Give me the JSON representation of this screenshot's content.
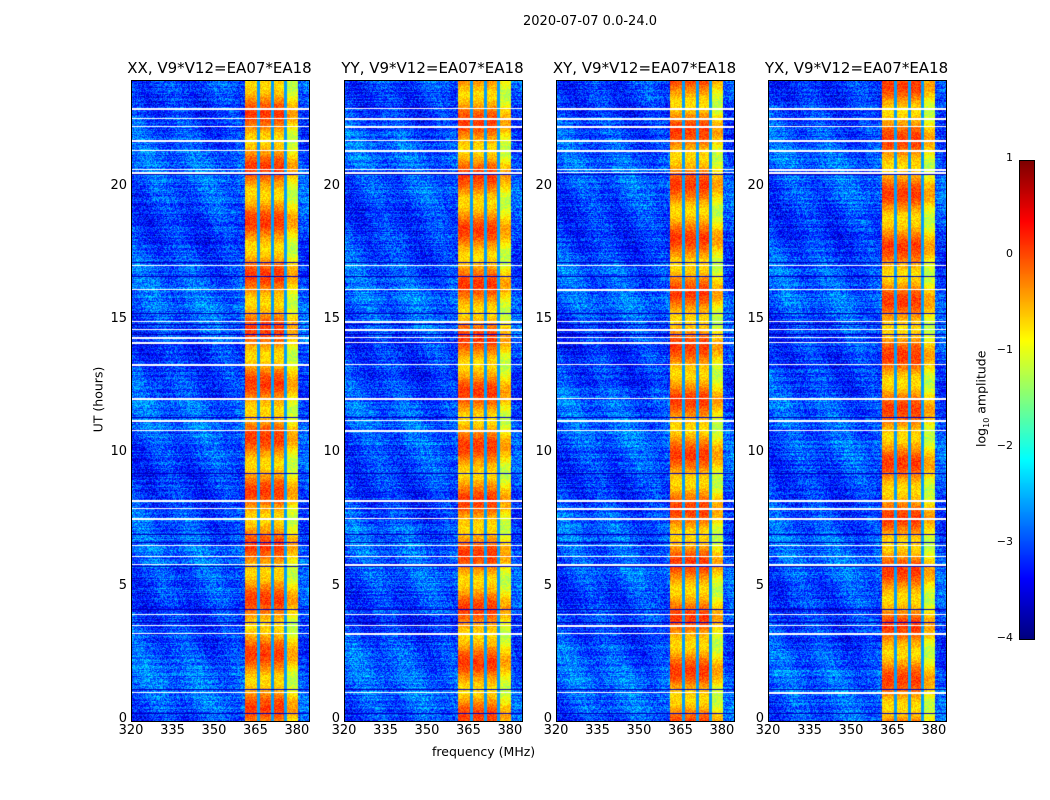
{
  "suptitle": "2020-07-07 0.0-24.0",
  "xlabel": "frequency (MHz)",
  "ylabel": "UT (hours)",
  "colorbar": {
    "label": "log",
    "label_sub": "10",
    "label_rest": " amplitude",
    "ticks": [
      "1",
      "0",
      "−1",
      "−2",
      "−3",
      "−4"
    ],
    "values": [
      1,
      0,
      -1,
      -2,
      -3,
      -4
    ],
    "clim": [
      -4,
      1
    ],
    "colormap": "jet"
  },
  "chart_data": {
    "type": "heatmap",
    "title": "2020-07-07 0.0-24.0",
    "xlabel": "frequency (MHz)",
    "ylabel": "UT (hours)",
    "xlim": [
      320,
      384
    ],
    "ylim": [
      0,
      24
    ],
    "x_ticks": [
      "320",
      "335",
      "350",
      "365",
      "380"
    ],
    "x_tick_values": [
      320,
      335,
      350,
      365,
      380
    ],
    "y_ticks": [
      "0",
      "5",
      "10",
      "15",
      "20"
    ],
    "y_tick_values": [
      0,
      5,
      10,
      15,
      20
    ],
    "color_scale": "log10 amplitude",
    "clim": [
      -4,
      1
    ],
    "background_level": -3,
    "bright_band_mhz": [
      360.5,
      380
    ],
    "bright_band_level": -0.3,
    "band_gaps_mhz": [
      365.5,
      370.5,
      375.2
    ],
    "flagged_hours": [
      23.0,
      22.6,
      22.3,
      21.8,
      21.4,
      20.7,
      20.6,
      17.1,
      16.2,
      15.0,
      14.7,
      14.4,
      14.2,
      13.4,
      12.1,
      11.3,
      10.9,
      8.3,
      8.0,
      7.6,
      6.6,
      6.2,
      5.9,
      4.0,
      3.6,
      3.3,
      1.1
    ],
    "panels": [
      {
        "title": "XX, V9*V12=EA07*EA18"
      },
      {
        "title": "YY, V9*V12=EA07*EA18"
      },
      {
        "title": "XY, V9*V12=EA07*EA18"
      },
      {
        "title": "YX, V9*V12=EA07*EA18"
      }
    ]
  }
}
